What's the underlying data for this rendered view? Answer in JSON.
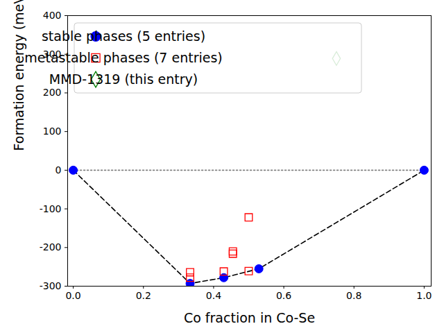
{
  "chart_data": {
    "type": "scatter",
    "x_label": "Co fraction in Co-Se",
    "y_label": "Formation energy (meV/atom)",
    "xlim": [
      -0.016,
      1.02
    ],
    "ylim": [
      -300,
      400
    ],
    "xticks": [
      {
        "value": 0,
        "label": "0.0"
      },
      0.2,
      0.4,
      0.6,
      0.8,
      {
        "value": 1,
        "label": "1.0"
      }
    ],
    "yticks": [
      -300,
      -200,
      -100,
      0,
      100,
      200,
      300,
      400
    ],
    "grid": false,
    "legend": "upper left",
    "series": [
      {
        "type": "line",
        "color": "#808080",
        "line_style": "dotted",
        "x": [
          0,
          1
        ],
        "values": [
          0,
          0
        ]
      },
      {
        "type": "line",
        "color": "#000000",
        "line_style": "dashed",
        "x": [
          0,
          0.333,
          0.429,
          0.529,
          1
        ],
        "values": [
          0,
          -293,
          -278,
          -255,
          0
        ]
      },
      {
        "name": "stable phases (5 entries)",
        "type": "scatter",
        "color": "#0000ff",
        "marker": "circle",
        "x": [
          0,
          0.333,
          0.429,
          0.529,
          1
        ],
        "values": [
          0,
          -293,
          -278,
          -255,
          0
        ]
      },
      {
        "name": "metastable phases (7 entries)",
        "type": "scatter",
        "color": "#ff0000",
        "marker": "open square",
        "x": [
          0.333,
          0.333,
          0.429,
          0.455,
          0.455,
          0.5,
          0.5
        ],
        "values": [
          -264,
          -278,
          -262,
          -210,
          -216,
          -261,
          -122
        ]
      },
      {
        "name": "MMD-1319 (this entry)",
        "type": "scatter",
        "color": "#008000",
        "marker": "open diamond",
        "x": [
          0.75
        ],
        "values": [
          289
        ]
      }
    ]
  }
}
